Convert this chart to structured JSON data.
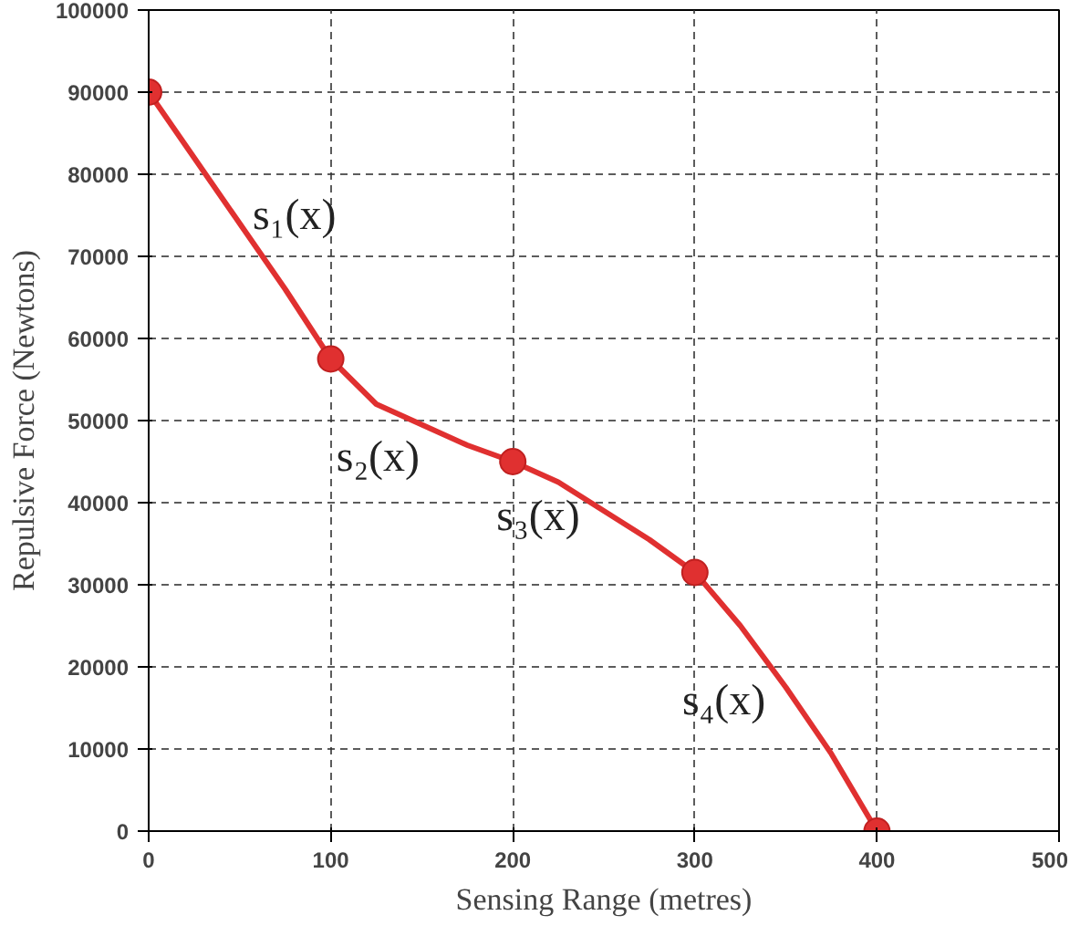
{
  "chart_data": {
    "type": "line",
    "xlabel": "Sensing Range (metres)",
    "ylabel": "Repulsive Force (Newtons)",
    "xlim": [
      0,
      500
    ],
    "ylim": [
      0,
      100000
    ],
    "xticks": [
      0,
      100,
      200,
      300,
      400,
      500
    ],
    "yticks": [
      0,
      10000,
      20000,
      30000,
      40000,
      50000,
      60000,
      70000,
      80000,
      90000,
      100000
    ],
    "grid": true,
    "series": [
      {
        "color": "#e03030",
        "x": [
          0,
          25,
          50,
          75,
          100,
          125,
          150,
          175,
          200,
          225,
          250,
          275,
          300,
          325,
          350,
          375,
          400
        ],
        "values": [
          90000,
          82000,
          74000,
          66000,
          57500,
          52000,
          49500,
          47000,
          45000,
          42500,
          39000,
          35500,
          31500,
          25000,
          17500,
          9400,
          0
        ]
      },
      {
        "type": "scatter",
        "color": "#e03030",
        "x": [
          0,
          100,
          200,
          300,
          400
        ],
        "values": [
          90000,
          57500,
          45000,
          31500,
          0
        ]
      }
    ],
    "annotations": [
      "s₁(x)",
      "s₂(x)",
      "s₃(x)",
      "s₄(x)"
    ]
  }
}
